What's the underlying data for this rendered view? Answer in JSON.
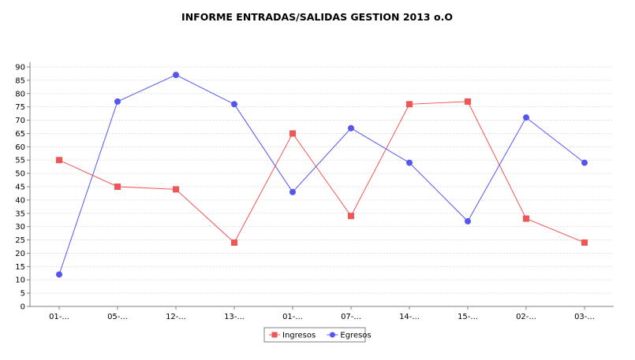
{
  "chart_data": {
    "type": "line",
    "title": "INFORME ENTRADAS/SALIDAS GESTION 2013 o.O",
    "xlabel": "",
    "ylabel": "",
    "categories": [
      "01-...",
      "05-...",
      "12-...",
      "13-...",
      "01-...",
      "07-...",
      "14-...",
      "15-...",
      "02-...",
      "03-..."
    ],
    "ylim": [
      0,
      90
    ],
    "yticks": [
      0,
      5,
      10,
      15,
      20,
      25,
      30,
      35,
      40,
      45,
      50,
      55,
      60,
      65,
      70,
      75,
      80,
      85,
      90
    ],
    "grid": true,
    "legend_position": "bottom",
    "series": [
      {
        "name": "Ingresos",
        "color": "#f25555",
        "marker": "square",
        "values": [
          55,
          45,
          44,
          24,
          65,
          34,
          76,
          77,
          33,
          24
        ]
      },
      {
        "name": "Egresos",
        "color": "#5555f2",
        "marker": "circle",
        "values": [
          12,
          77,
          87,
          76,
          43,
          67,
          54,
          32,
          71,
          54
        ]
      }
    ]
  }
}
